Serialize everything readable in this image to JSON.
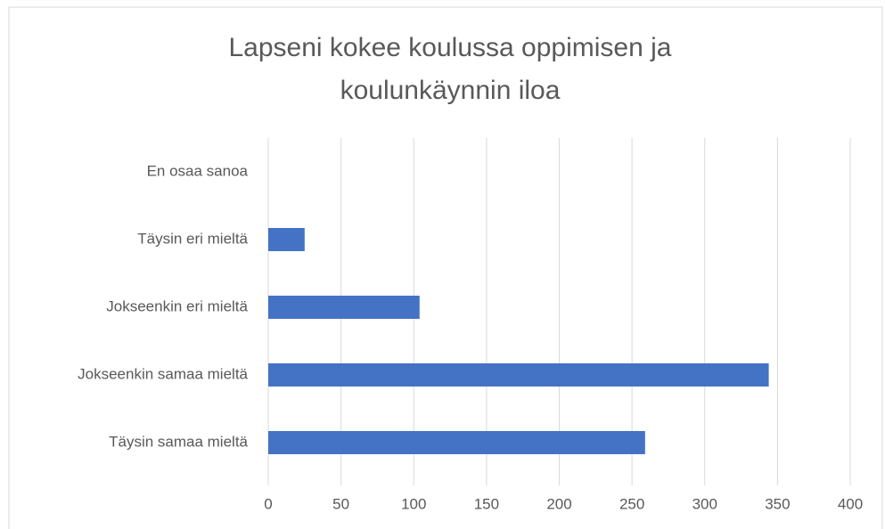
{
  "chart_data": {
    "type": "bar",
    "orientation": "horizontal",
    "title": "Lapseni kokee koulussa oppimisen ja koulunkäynnin iloa",
    "categories": [
      "En osaa sanoa",
      "Täysin eri mieltä",
      "Jokseenkin eri mieltä",
      "Jokseenkin samaa mieltä",
      "Täysin samaa mieltä"
    ],
    "values": [
      0,
      25,
      104,
      344,
      259
    ],
    "color": "#4472c4",
    "xlim": [
      0,
      400
    ],
    "xticks": [
      0,
      50,
      100,
      150,
      200,
      250,
      300,
      350,
      400
    ],
    "grid": true
  }
}
